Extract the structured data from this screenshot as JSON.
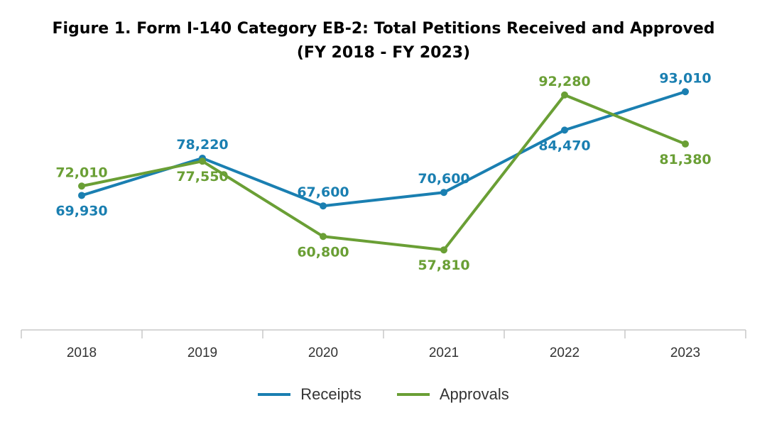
{
  "colors": {
    "receipts": "#1a7fb1",
    "approvals": "#6a9f35",
    "axis": "#c8c8c8"
  },
  "chart_data": {
    "type": "line",
    "title": "Figure 1. Form I-140 Category EB-2: Total Petitions Received and Approved",
    "subtitle": "(FY 2018 - FY 2023)",
    "xlabel": "",
    "ylabel": "",
    "categories": [
      "2018",
      "2019",
      "2020",
      "2021",
      "2022",
      "2023"
    ],
    "ylim": [
      40000,
      100000
    ],
    "grid": false,
    "legend_position": "bottom-center",
    "series": [
      {
        "name": "Receipts",
        "color_key": "receipts",
        "values": [
          69930,
          78220,
          67600,
          70600,
          84470,
          93010
        ],
        "labels": [
          "69,930",
          "78,220",
          "67,600",
          "70,600",
          "84,470",
          "93,010"
        ],
        "label_side": [
          "below",
          "above",
          "above",
          "above",
          "below",
          "above"
        ]
      },
      {
        "name": "Approvals",
        "color_key": "approvals",
        "values": [
          72010,
          77550,
          60800,
          57810,
          92280,
          81380
        ],
        "labels": [
          "72,010",
          "77,550",
          "60,800",
          "57,810",
          "92,280",
          "81,380"
        ],
        "label_side": [
          "above",
          "below",
          "below",
          "below",
          "above",
          "below"
        ]
      }
    ]
  }
}
